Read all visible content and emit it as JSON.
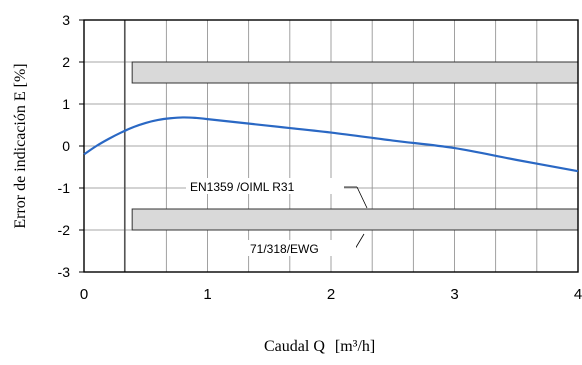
{
  "chart_data": {
    "type": "line",
    "title": "",
    "xlabel": "Caudal Q",
    "xlabel_unit": "[m³/h]",
    "ylabel": "Error de indicación E [%]",
    "xlim": [
      0,
      4
    ],
    "ylim": [
      -3,
      3
    ],
    "x_ticks": [
      "0",
      "1",
      "2",
      "3",
      "4"
    ],
    "y_ticks": [
      "3",
      "2",
      "1",
      "0",
      "-1",
      "-2",
      "-3"
    ],
    "grid": true,
    "series": [
      {
        "color": "#2a68c4",
        "x": [
          0,
          0.1,
          0.2,
          0.3,
          0.4,
          0.5,
          0.6,
          0.7,
          0.8,
          0.9,
          1.0,
          1.5,
          2.0,
          2.5,
          3.0,
          3.5,
          4.0
        ],
        "y": [
          -0.2,
          0.0,
          0.17,
          0.32,
          0.45,
          0.55,
          0.62,
          0.66,
          0.68,
          0.67,
          0.64,
          0.48,
          0.32,
          0.13,
          -0.05,
          -0.33,
          -0.6
        ]
      }
    ],
    "limit_bands": [
      {
        "x_start": 0.39,
        "x_end": 4.0,
        "y_low": 1.5,
        "y_high": 2.0,
        "color": "#d9d9d9"
      },
      {
        "x_start": 0.39,
        "x_end": 4.0,
        "y_low": -2.0,
        "y_high": -1.5,
        "color": "#d9d9d9"
      }
    ],
    "reference_vline_x": 0.33,
    "annotations": [
      {
        "text": "EN1359 /OIML R31"
      },
      {
        "text": "71/318/EWG"
      }
    ]
  }
}
